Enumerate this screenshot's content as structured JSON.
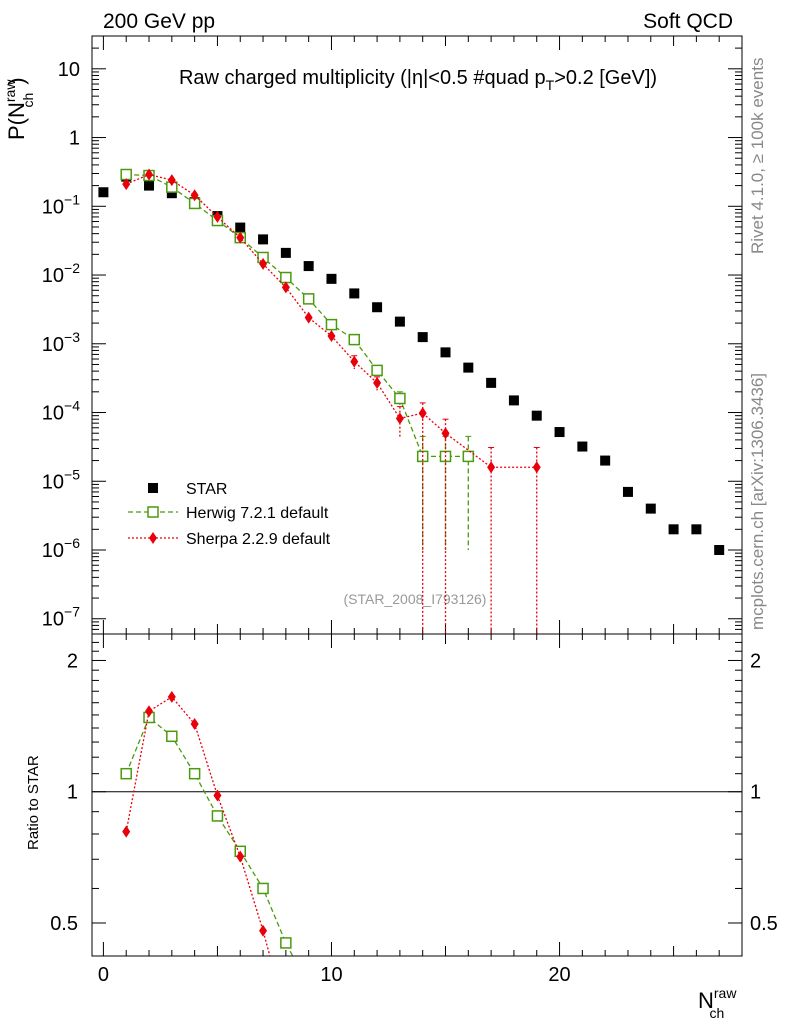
{
  "header": {
    "left": "200 GeV pp",
    "right": "Soft QCD"
  },
  "side_labels": {
    "rivet": "Rivet 4.1.0, ≥ 100k events",
    "mcplots": "mcplots.cern.ch [arXiv:1306.3436]"
  },
  "chart_data": [
    {
      "type": "scatter",
      "panel": "main",
      "title": "Raw charged multiplicity (|η|<0.5 #quad p_T>0.2 [GeV])",
      "title_parts": {
        "pre": "Raw charged multiplicity (|η|<0.5 #quad p",
        "sub": "T",
        "post": ">0.2 [GeV])"
      },
      "ylabel": {
        "base": "P(N",
        "sup": "raw",
        "sub": "ch",
        "close": ")"
      },
      "yscale": "log",
      "ylim": [
        6e-08,
        30
      ],
      "xlim": [
        -0.5,
        28
      ],
      "grid": false,
      "legend_position": "bottom-left",
      "watermark": "(STAR_2008_I793126)",
      "y_ticks": [
        {
          "label": "10",
          "value": 10
        },
        {
          "label": "1",
          "value": 1
        },
        {
          "base": "10",
          "exp": "−1",
          "value": 0.1
        },
        {
          "base": "10",
          "exp": "−2",
          "value": 0.01
        },
        {
          "base": "10",
          "exp": "−3",
          "value": 0.001
        },
        {
          "base": "10",
          "exp": "−4",
          "value": 0.0001
        },
        {
          "base": "10",
          "exp": "−5",
          "value": 1e-05
        },
        {
          "base": "10",
          "exp": "−6",
          "value": 1e-06
        },
        {
          "base": "10",
          "exp": "−7",
          "value": 1e-07
        }
      ],
      "series": [
        {
          "name": "STAR",
          "color": "#000000",
          "marker": "filled-square",
          "x": [
            0,
            1,
            2,
            3,
            4,
            5,
            6,
            7,
            8,
            9,
            10,
            11,
            12,
            13,
            14,
            15,
            16,
            17,
            18,
            19,
            20,
            21,
            22,
            23,
            24,
            25,
            26,
            27
          ],
          "y": [
            0.16,
            0.27,
            0.2,
            0.155,
            0.115,
            0.072,
            0.049,
            0.033,
            0.021,
            0.0135,
            0.0088,
            0.0054,
            0.0034,
            0.0021,
            0.00125,
            0.00075,
            0.00045,
            0.00027,
            0.00015,
            9e-05,
            5.2e-05,
            3.2e-05,
            2e-05,
            7e-06,
            4e-06,
            2e-06,
            2e-06,
            1e-06
          ]
        },
        {
          "name": "Herwig 7.2.1 default",
          "color": "#4a9a0e",
          "marker": "open-square",
          "line": "dashed",
          "x": [
            1,
            2,
            3,
            4,
            5,
            6,
            7,
            8,
            9,
            10,
            11,
            12,
            13,
            14,
            15,
            16
          ],
          "y": [
            0.29,
            0.28,
            0.19,
            0.11,
            0.062,
            0.035,
            0.018,
            0.0092,
            0.0045,
            0.0019,
            0.00115,
            0.00041,
            0.00016,
            2.3e-05,
            2.3e-05,
            2.3e-05
          ],
          "yerr_hi": [
            0,
            0,
            0,
            0,
            0,
            0,
            0,
            0,
            0,
            0,
            0,
            0,
            4e-05,
            2.2e-05,
            2.2e-05,
            2.2e-05
          ],
          "yerr_lo": [
            0,
            0,
            0,
            0,
            0,
            0,
            0,
            0,
            0,
            0,
            0,
            0,
            4e-05,
            2.2e-05,
            2.2e-05,
            2.2e-05
          ]
        },
        {
          "name": "Sherpa 2.2.9 default",
          "color": "#e8000b",
          "marker": "filled-diamond",
          "line": "dotted",
          "x": [
            1,
            2,
            3,
            4,
            5,
            6,
            7,
            8,
            9,
            10,
            11,
            12,
            13,
            14,
            15,
            17,
            19
          ],
          "y": [
            0.21,
            0.29,
            0.24,
            0.145,
            0.07,
            0.035,
            0.0145,
            0.0066,
            0.0024,
            0.0013,
            0.00055,
            0.00027,
            8.2e-05,
            9.8e-05,
            5e-05,
            1.6e-05,
            1.6e-05
          ],
          "yerr_hi": [
            0,
            0,
            0,
            0,
            0,
            0,
            0,
            0,
            0,
            0,
            0.00012,
            6e-05,
            4e-05,
            4e-05,
            3e-05,
            1.5e-05,
            1.5e-05
          ],
          "yerr_lo": [
            0,
            0,
            0,
            0,
            0,
            0,
            0,
            0,
            0,
            0,
            0.00012,
            6e-05,
            4e-05,
            9.8e-05,
            5e-05,
            1.6e-05,
            1.6e-05
          ]
        }
      ]
    },
    {
      "type": "line",
      "panel": "ratio",
      "ylabel": "Ratio to STAR",
      "xlabel": {
        "base": "N",
        "sup": "raw",
        "sub": "ch"
      },
      "yscale": "log",
      "ylim": [
        0.42,
        2.3
      ],
      "xlim": [
        -0.5,
        28
      ],
      "reference_line": 1,
      "y_ticks": [
        {
          "label": "2",
          "value": 2
        },
        {
          "label": "1",
          "value": 1
        },
        {
          "label": "0.5",
          "value": 0.5
        }
      ],
      "x_ticks": [
        {
          "label": "0",
          "value": 0
        },
        {
          "label": "10",
          "value": 10
        },
        {
          "label": "20",
          "value": 20
        }
      ],
      "series": [
        {
          "name": "Herwig 7.2.1 default",
          "color": "#4a9a0e",
          "marker": "open-square",
          "line": "dashed",
          "x": [
            1,
            2,
            3,
            4,
            5,
            6,
            7,
            8
          ],
          "y": [
            1.1,
            1.48,
            1.34,
            1.1,
            0.88,
            0.73,
            0.6,
            0.45
          ]
        },
        {
          "name": "Sherpa 2.2.9 default",
          "color": "#e8000b",
          "marker": "filled-diamond",
          "line": "dotted",
          "x": [
            1,
            2,
            3,
            4,
            5,
            6,
            7
          ],
          "y": [
            0.81,
            1.53,
            1.65,
            1.43,
            0.98,
            0.71,
            0.48
          ]
        }
      ]
    }
  ]
}
